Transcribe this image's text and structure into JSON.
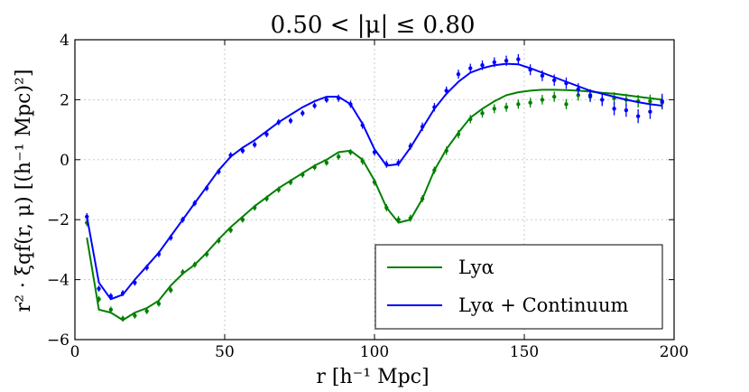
{
  "chart_data": {
    "type": "line",
    "title": "0.50 < |μ| ≤ 0.80",
    "xlabel": "r [h⁻¹ Mpc]",
    "ylabel": "r² · ξqf(r, μ) [(h⁻¹ Mpc)²]",
    "xlim": [
      0,
      200
    ],
    "ylim": [
      -6,
      4
    ],
    "xticks": [
      0,
      50,
      100,
      150,
      200
    ],
    "yticks": [
      -6,
      -4,
      -2,
      0,
      2,
      4
    ],
    "grid": true,
    "legend_position": "bottom-right",
    "x": [
      4,
      8,
      12,
      16,
      20,
      24,
      28,
      32,
      36,
      40,
      44,
      48,
      52,
      56,
      60,
      64,
      68,
      72,
      76,
      80,
      84,
      88,
      92,
      96,
      100,
      104,
      108,
      112,
      116,
      120,
      124,
      128,
      132,
      136,
      140,
      144,
      148,
      152,
      156,
      160,
      164,
      168,
      172,
      176,
      180,
      184,
      188,
      192,
      196
    ],
    "series": [
      {
        "name": "Lyα",
        "color": "#008000",
        "model": [
          -2.6,
          -5.0,
          -5.1,
          -5.35,
          -5.1,
          -4.95,
          -4.7,
          -4.2,
          -3.8,
          -3.5,
          -3.1,
          -2.65,
          -2.25,
          -1.9,
          -1.55,
          -1.25,
          -0.95,
          -0.7,
          -0.45,
          -0.2,
          0.0,
          0.25,
          0.3,
          0.0,
          -0.7,
          -1.6,
          -2.1,
          -2.0,
          -1.3,
          -0.35,
          0.35,
          0.9,
          1.4,
          1.7,
          1.95,
          2.15,
          2.25,
          2.3,
          2.33,
          2.33,
          2.32,
          2.3,
          2.27,
          2.23,
          2.2,
          2.15,
          2.1,
          2.05,
          2.0
        ],
        "points": [
          -2.1,
          -4.65,
          -5.0,
          -5.3,
          -5.2,
          -5.05,
          -4.8,
          -4.35,
          -3.75,
          -3.5,
          -3.15,
          -2.7,
          -2.35,
          -2.0,
          -1.6,
          -1.3,
          -1.0,
          -0.75,
          -0.5,
          -0.25,
          -0.1,
          0.1,
          0.25,
          -0.05,
          -0.75,
          -1.6,
          -2.0,
          -1.95,
          -1.3,
          -0.35,
          0.3,
          0.85,
          1.35,
          1.55,
          1.7,
          1.75,
          1.85,
          1.9,
          2.0,
          2.1,
          1.85,
          2.15,
          2.1,
          2.0,
          2.05,
          2.0,
          1.95,
          1.95,
          1.9
        ],
        "errors": [
          0.12,
          0.1,
          0.1,
          0.1,
          0.1,
          0.1,
          0.1,
          0.1,
          0.1,
          0.1,
          0.1,
          0.1,
          0.1,
          0.1,
          0.1,
          0.1,
          0.1,
          0.1,
          0.1,
          0.1,
          0.1,
          0.1,
          0.1,
          0.12,
          0.12,
          0.12,
          0.12,
          0.12,
          0.12,
          0.12,
          0.14,
          0.14,
          0.14,
          0.15,
          0.15,
          0.15,
          0.15,
          0.16,
          0.16,
          0.17,
          0.17,
          0.18,
          0.18,
          0.19,
          0.2,
          0.2,
          0.21,
          0.22,
          0.23
        ]
      },
      {
        "name": "Lyα + Continuum",
        "color": "#0000ff",
        "model": [
          -1.9,
          -4.1,
          -4.65,
          -4.5,
          -4.0,
          -3.55,
          -3.1,
          -2.55,
          -2.0,
          -1.45,
          -0.9,
          -0.35,
          0.1,
          0.4,
          0.65,
          0.95,
          1.25,
          1.5,
          1.75,
          1.95,
          2.1,
          2.1,
          1.85,
          1.2,
          0.35,
          -0.2,
          -0.15,
          0.4,
          1.05,
          1.7,
          2.2,
          2.6,
          2.9,
          3.05,
          3.15,
          3.2,
          3.18,
          3.05,
          2.9,
          2.75,
          2.6,
          2.45,
          2.3,
          2.2,
          2.1,
          2.0,
          1.92,
          1.85,
          1.8
        ],
        "points": [
          -1.9,
          -4.3,
          -4.55,
          -4.45,
          -4.1,
          -3.6,
          -3.15,
          -2.6,
          -2.0,
          -1.45,
          -0.95,
          -0.4,
          0.15,
          0.3,
          0.5,
          0.85,
          1.25,
          1.3,
          1.55,
          1.8,
          2.0,
          2.05,
          1.85,
          1.15,
          0.25,
          -0.15,
          -0.1,
          0.45,
          1.1,
          1.75,
          2.3,
          2.85,
          3.05,
          3.15,
          3.25,
          3.3,
          3.35,
          3.0,
          2.8,
          2.65,
          2.55,
          2.35,
          2.15,
          2.0,
          1.7,
          1.65,
          1.45,
          1.6,
          1.95
        ],
        "errors": [
          0.12,
          0.1,
          0.1,
          0.1,
          0.1,
          0.1,
          0.1,
          0.1,
          0.1,
          0.1,
          0.1,
          0.1,
          0.1,
          0.1,
          0.1,
          0.1,
          0.1,
          0.1,
          0.1,
          0.1,
          0.1,
          0.12,
          0.12,
          0.12,
          0.12,
          0.12,
          0.12,
          0.12,
          0.14,
          0.14,
          0.14,
          0.15,
          0.15,
          0.16,
          0.16,
          0.17,
          0.17,
          0.18,
          0.18,
          0.19,
          0.19,
          0.2,
          0.2,
          0.21,
          0.22,
          0.22,
          0.23,
          0.24,
          0.25
        ]
      }
    ]
  }
}
